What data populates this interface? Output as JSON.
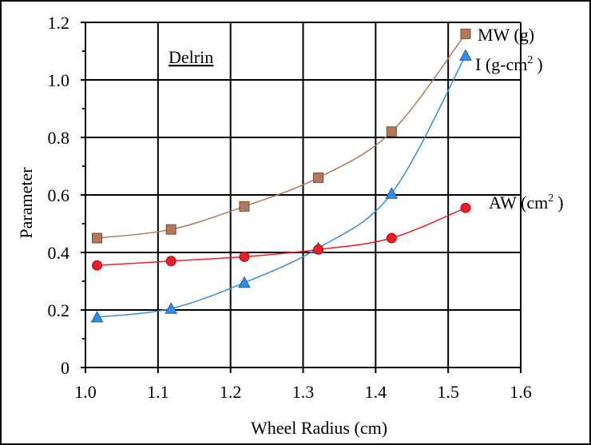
{
  "chart_data": {
    "type": "line",
    "annotation": "Delrin",
    "xlabel": "Wheel Radius (cm)",
    "ylabel": "Parameter",
    "xlim": [
      1.0,
      1.6
    ],
    "ylim": [
      0,
      1.2
    ],
    "x_ticks": [
      "1.0",
      "1.1",
      "1.2",
      "1.3",
      "1.4",
      "1.5",
      "1.6"
    ],
    "y_ticks": [
      "0",
      "0.2",
      "0.4",
      "0.6",
      "0.8",
      "1.0",
      "1.2"
    ],
    "grid": true,
    "series": [
      {
        "name": "MW (g)",
        "label_text": "MW (g)",
        "marker": "square",
        "color": "#b4785a",
        "marker_color": "#b4785a",
        "x": [
          1.016,
          1.118,
          1.219,
          1.321,
          1.422,
          1.524
        ],
        "y": [
          0.45,
          0.48,
          0.56,
          0.66,
          0.82,
          1.16
        ]
      },
      {
        "name": "I (g-cm²)",
        "label_text": "I (g-cm",
        "label_sup": "2",
        "label_tail": ")",
        "marker": "triangle",
        "color": "#2f8fe6",
        "marker_color": "#2f8fe6",
        "x": [
          1.016,
          1.118,
          1.219,
          1.321,
          1.422,
          1.524
        ],
        "y": [
          0.175,
          0.205,
          0.295,
          0.415,
          0.605,
          1.085
        ]
      },
      {
        "name": "AW (cm²)",
        "label_text": "AW (cm",
        "label_sup": "2",
        "label_tail": ")",
        "marker": "circle",
        "color": "#ee1c24",
        "marker_color": "#ee1c24",
        "x": [
          1.016,
          1.118,
          1.219,
          1.321,
          1.422,
          1.524
        ],
        "y": [
          0.355,
          0.37,
          0.385,
          0.41,
          0.45,
          0.555
        ]
      }
    ]
  }
}
